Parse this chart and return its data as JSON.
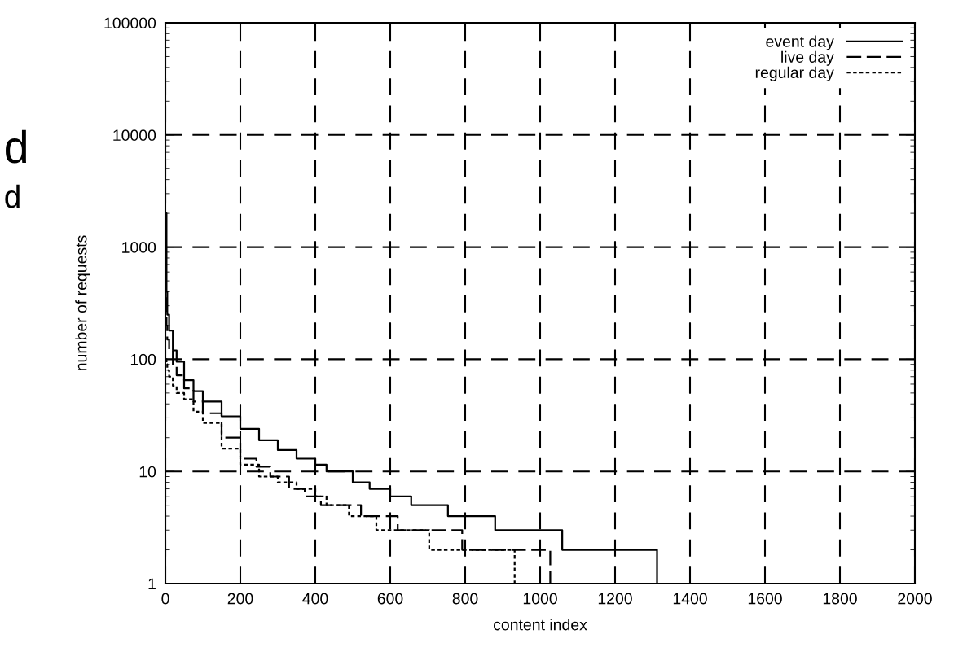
{
  "chart_data": {
    "type": "step",
    "xlabel": "content index",
    "ylabel": "number of requests",
    "log": "y",
    "xlim": [
      0,
      2000
    ],
    "xticks": [
      0,
      200,
      400,
      600,
      800,
      1000,
      1200,
      1400,
      1600,
      1800,
      2000
    ],
    "ylim": [
      1,
      100000
    ],
    "yticks": [
      1,
      10,
      100,
      1000,
      10000,
      100000
    ],
    "grid": true,
    "legend": "top right",
    "annotations": [
      "d",
      "d"
    ],
    "series": [
      {
        "name": "event day",
        "color": "#000000",
        "line_style": "solid",
        "x": [
          1,
          3,
          5,
          10,
          20,
          30,
          50,
          75,
          100,
          150,
          200,
          250,
          300,
          350,
          400,
          430,
          500,
          545,
          600,
          656,
          754,
          880,
          1059,
          1312
        ],
        "values": [
          2000,
          400,
          250,
          180,
          120,
          95,
          65,
          52,
          42,
          31,
          24,
          19,
          15.5,
          13,
          11.5,
          10,
          8,
          7,
          6,
          5,
          4,
          3,
          2,
          1
        ]
      },
      {
        "name": "live day",
        "color": "#000000",
        "line_style": "dashed",
        "x": [
          1,
          3,
          5,
          10,
          20,
          30,
          50,
          75,
          100,
          150,
          200,
          243,
          280,
          330,
          372,
          415,
          522,
          620,
          792,
          1027
        ],
        "values": [
          350,
          200,
          150,
          120,
          90,
          72,
          55,
          42,
          33,
          20,
          13,
          11,
          9,
          7,
          6,
          5,
          4,
          3,
          2,
          1
        ]
      },
      {
        "name": "regular day",
        "color": "#000000",
        "line_style": "dotted",
        "x": [
          1,
          3,
          5,
          10,
          20,
          30,
          50,
          75,
          100,
          150,
          200,
          250,
          300,
          350,
          400,
          430,
          490,
          563,
          704,
          932
        ],
        "values": [
          100,
          90,
          80,
          70,
          58,
          50,
          44,
          34,
          27,
          16,
          11.5,
          9,
          8,
          7,
          6,
          5,
          4,
          3,
          2,
          1
        ]
      }
    ]
  }
}
